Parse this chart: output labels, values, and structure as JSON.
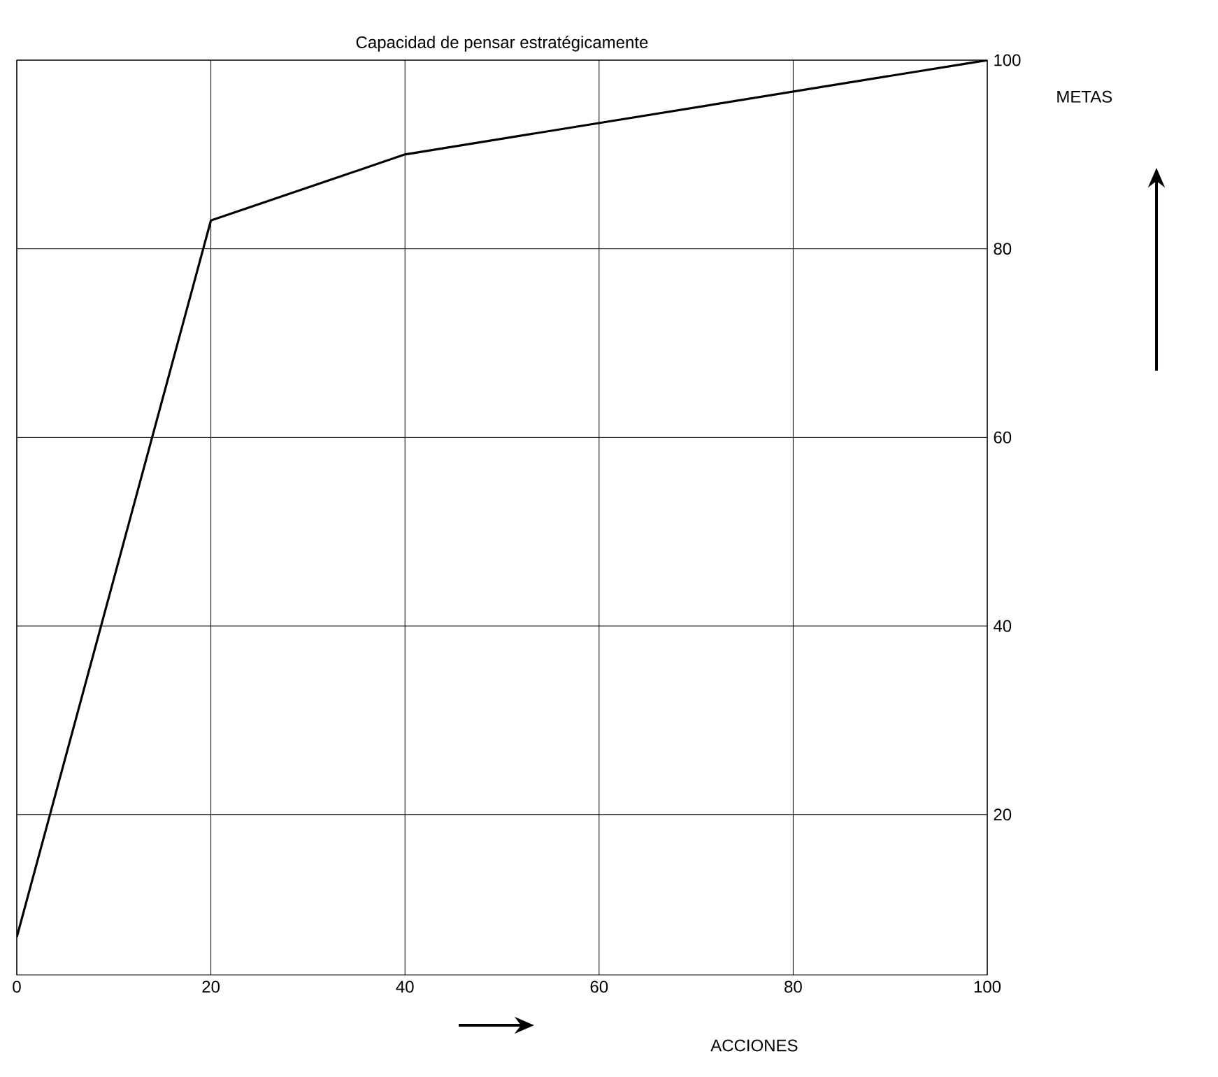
{
  "chart_data": {
    "type": "line",
    "title": "Capacidad de pensar estratégicamente",
    "xlabel": "ACCIONES",
    "ylabel": "METAS",
    "x": [
      0,
      20,
      40,
      100
    ],
    "series": [
      {
        "color": "#000000",
        "values": [
          7,
          83,
          90,
          100
        ]
      }
    ],
    "xlim": [
      0,
      100
    ],
    "ylim": [
      3,
      100
    ],
    "xticks": [
      0,
      20,
      40,
      60,
      80,
      100
    ],
    "yticks": [
      20,
      40,
      60,
      80,
      100
    ],
    "grid": true,
    "marker": "none",
    "line_style": "solid"
  }
}
